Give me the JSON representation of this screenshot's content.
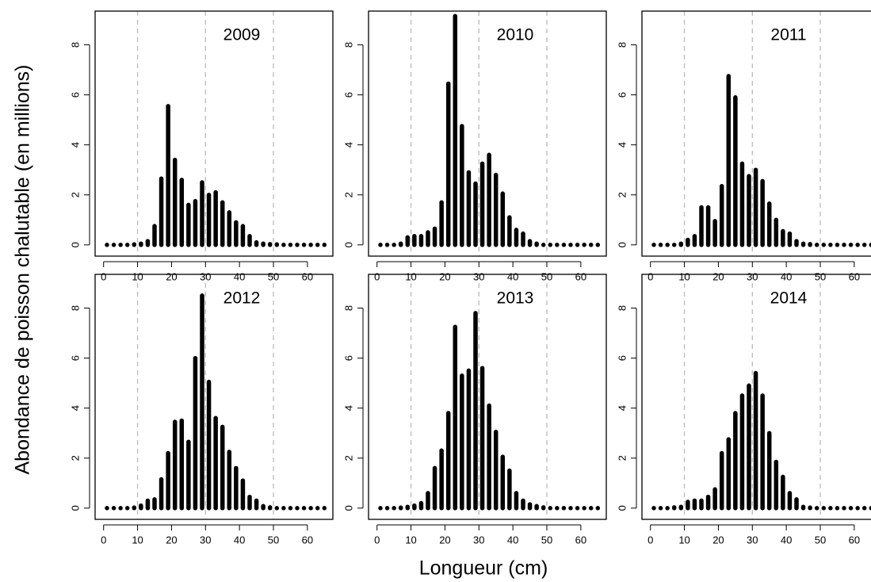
{
  "ylabel": "Abondance de poisson chalutable (en millions)",
  "xlabel": "Longueur (cm)",
  "chart_data": [
    {
      "type": "bar",
      "title": "2009",
      "color": "#000000",
      "x": [
        1,
        3,
        5,
        7,
        9,
        11,
        13,
        15,
        17,
        19,
        21,
        23,
        25,
        27,
        29,
        31,
        33,
        35,
        37,
        39,
        41,
        43,
        45,
        47,
        49,
        51,
        53,
        55,
        57,
        59,
        61,
        63,
        65
      ],
      "values": [
        0,
        0,
        0,
        0,
        0.02,
        0.05,
        0.15,
        0.75,
        2.65,
        5.55,
        3.4,
        2.6,
        1.6,
        1.75,
        2.5,
        2.0,
        2.1,
        1.7,
        1.3,
        0.9,
        0.75,
        0.35,
        0.1,
        0.05,
        0.03,
        0.02,
        0,
        0,
        0,
        0,
        0,
        0,
        0
      ],
      "xlim": [
        -2.5,
        67.5
      ],
      "ylim": [
        -0.45,
        9.35
      ],
      "xticks": [
        0,
        10,
        20,
        30,
        40,
        50,
        60
      ],
      "yticks": [
        0,
        2,
        4,
        6,
        8
      ],
      "ref_lines": [
        10,
        30,
        50
      ],
      "ref_color": "#bbbbbb"
    },
    {
      "type": "bar",
      "title": "2010",
      "color": "#000000",
      "x": [
        1,
        3,
        5,
        7,
        9,
        11,
        13,
        15,
        17,
        19,
        21,
        23,
        25,
        27,
        29,
        31,
        33,
        35,
        37,
        39,
        41,
        43,
        45,
        47,
        49,
        51,
        53,
        55,
        57,
        59,
        61,
        63,
        65
      ],
      "values": [
        0,
        0,
        0,
        0.05,
        0.3,
        0.35,
        0.35,
        0.5,
        0.65,
        1.7,
        6.45,
        9.15,
        4.75,
        2.9,
        2.45,
        3.25,
        3.6,
        2.8,
        2.05,
        1.1,
        0.6,
        0.45,
        0.15,
        0.05,
        0,
        0,
        0,
        0,
        0,
        0,
        0,
        0,
        0
      ],
      "xlim": [
        -2.5,
        67.5
      ],
      "ylim": [
        -0.45,
        9.35
      ],
      "xticks": [
        0,
        10,
        20,
        30,
        40,
        50,
        60
      ],
      "yticks": [
        0,
        2,
        4,
        6,
        8
      ],
      "ref_lines": [
        10,
        30,
        50
      ],
      "ref_color": "#bbbbbb"
    },
    {
      "type": "bar",
      "title": "2011",
      "color": "#000000",
      "x": [
        1,
        3,
        5,
        7,
        9,
        11,
        13,
        15,
        17,
        19,
        21,
        23,
        25,
        27,
        29,
        31,
        33,
        35,
        37,
        39,
        41,
        43,
        45,
        47,
        49,
        51,
        53,
        55,
        57,
        59,
        61,
        63,
        65
      ],
      "values": [
        0,
        0,
        0,
        0,
        0.05,
        0.2,
        0.35,
        1.5,
        1.5,
        0.95,
        2.35,
        6.75,
        5.9,
        3.25,
        2.75,
        3.0,
        2.55,
        1.65,
        1.0,
        0.55,
        0.45,
        0.15,
        0.05,
        0.03,
        0,
        0,
        0,
        0,
        0,
        0,
        0,
        0,
        0
      ],
      "xlim": [
        -2.5,
        67.5
      ],
      "ylim": [
        -0.45,
        9.35
      ],
      "xticks": [
        0,
        10,
        20,
        30,
        40,
        50,
        60
      ],
      "yticks": [
        0,
        2,
        4,
        6,
        8
      ],
      "ref_lines": [
        10,
        30,
        50
      ],
      "ref_color": "#bbbbbb"
    },
    {
      "type": "bar",
      "title": "2012",
      "color": "#000000",
      "x": [
        1,
        3,
        5,
        7,
        9,
        11,
        13,
        15,
        17,
        19,
        21,
        23,
        25,
        27,
        29,
        31,
        33,
        35,
        37,
        39,
        41,
        43,
        45,
        47,
        49,
        51,
        53,
        55,
        57,
        59,
        61,
        63,
        65
      ],
      "values": [
        0,
        0,
        0,
        0,
        0.02,
        0.1,
        0.3,
        0.35,
        1.15,
        2.2,
        3.45,
        3.5,
        2.65,
        6.0,
        8.5,
        5.05,
        3.6,
        3.25,
        2.25,
        1.6,
        1.1,
        0.45,
        0.3,
        0.08,
        0.03,
        0,
        0,
        0,
        0,
        0,
        0,
        0,
        0
      ],
      "xlim": [
        -2.5,
        67.5
      ],
      "ylim": [
        -0.45,
        9.35
      ],
      "xticks": [
        0,
        10,
        20,
        30,
        40,
        50,
        60
      ],
      "yticks": [
        0,
        2,
        4,
        6,
        8
      ],
      "ref_lines": [
        10,
        30,
        50
      ],
      "ref_color": "#bbbbbb"
    },
    {
      "type": "bar",
      "title": "2013",
      "color": "#000000",
      "x": [
        1,
        3,
        5,
        7,
        9,
        11,
        13,
        15,
        17,
        19,
        21,
        23,
        25,
        27,
        29,
        31,
        33,
        35,
        37,
        39,
        41,
        43,
        45,
        47,
        49,
        51,
        53,
        55,
        57,
        59,
        61,
        63,
        65
      ],
      "values": [
        0,
        0,
        0,
        0.02,
        0.05,
        0.1,
        0.2,
        0.6,
        1.6,
        2.3,
        3.8,
        7.25,
        5.3,
        5.5,
        7.8,
        5.6,
        4.1,
        3.05,
        2.05,
        1.5,
        0.6,
        0.3,
        0.15,
        0.08,
        0.03,
        0,
        0,
        0,
        0,
        0,
        0,
        0,
        0
      ],
      "xlim": [
        -2.5,
        67.5
      ],
      "ylim": [
        -0.45,
        9.35
      ],
      "xticks": [
        0,
        10,
        20,
        30,
        40,
        50,
        60
      ],
      "yticks": [
        0,
        2,
        4,
        6,
        8
      ],
      "ref_lines": [
        10,
        30,
        50
      ],
      "ref_color": "#bbbbbb"
    },
    {
      "type": "bar",
      "title": "2014",
      "color": "#000000",
      "x": [
        1,
        3,
        5,
        7,
        9,
        11,
        13,
        15,
        17,
        19,
        21,
        23,
        25,
        27,
        29,
        31,
        33,
        35,
        37,
        39,
        41,
        43,
        45,
        47,
        49,
        51,
        53,
        55,
        57,
        59,
        61,
        63,
        65
      ],
      "values": [
        0,
        0,
        0,
        0.03,
        0.05,
        0.25,
        0.3,
        0.3,
        0.45,
        0.75,
        2.2,
        2.75,
        3.8,
        4.5,
        4.9,
        5.4,
        4.5,
        3.0,
        1.85,
        1.25,
        0.6,
        0.35,
        0.05,
        0.02,
        0,
        0,
        0,
        0,
        0,
        0,
        0,
        0,
        0
      ],
      "xlim": [
        -2.5,
        67.5
      ],
      "ylim": [
        -0.45,
        9.35
      ],
      "xticks": [
        0,
        10,
        20,
        30,
        40,
        50,
        60
      ],
      "yticks": [
        0,
        2,
        4,
        6,
        8
      ],
      "ref_lines": [
        10,
        30,
        50
      ],
      "ref_color": "#bbbbbb"
    }
  ]
}
